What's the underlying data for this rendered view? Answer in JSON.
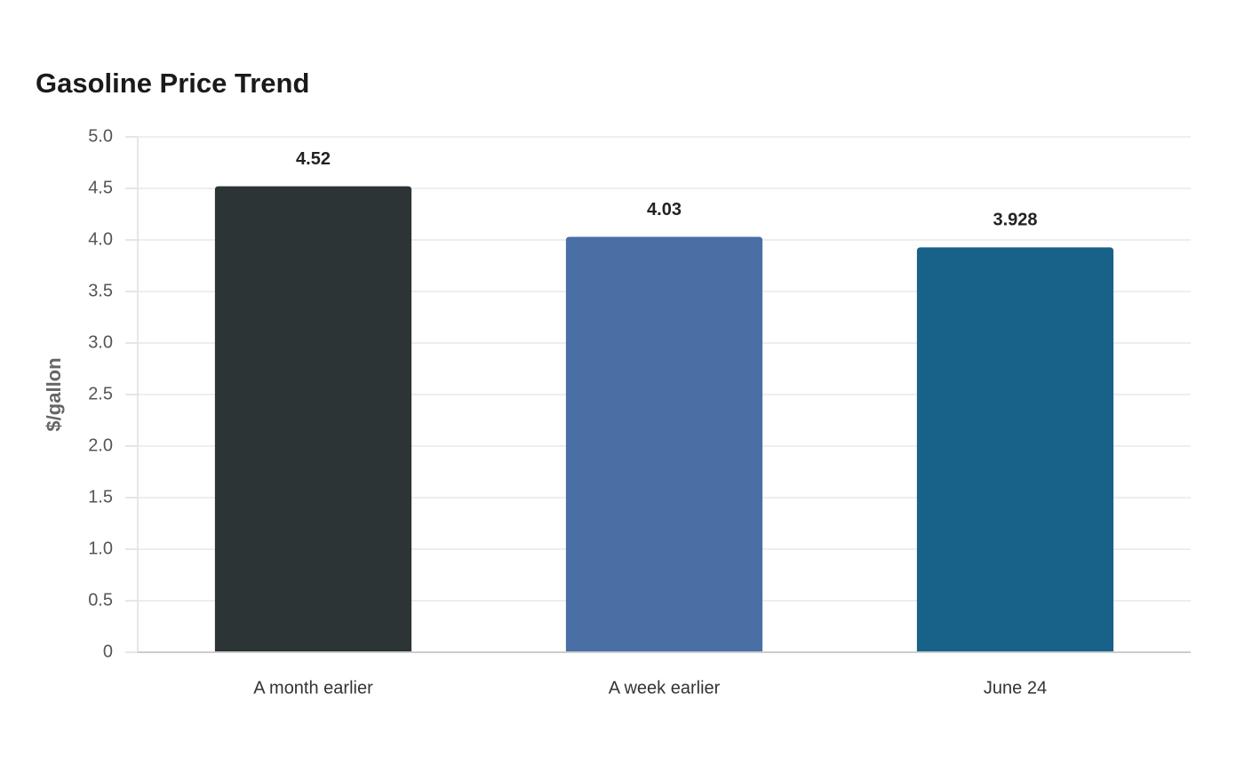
{
  "chart_data": {
    "type": "bar",
    "title": "Gasoline Price Trend",
    "y_label": "$/gallon",
    "categories": [
      "A month earlier",
      "A week earlier",
      "June 24"
    ],
    "values": [
      4.52,
      4.03,
      3.928
    ],
    "colors": [
      "#2d3436",
      "#4a6fa5",
      "#186189"
    ],
    "ylim": [
      0,
      5
    ],
    "yticks": [
      0,
      0.5,
      {
        "value": 1,
        "label": "1.0"
      },
      1.5,
      {
        "value": 2,
        "label": "2.0"
      },
      2.5,
      {
        "value": 3,
        "label": "3.0"
      },
      3.5,
      {
        "value": 4,
        "label": "4.0"
      },
      4.5,
      {
        "value": 5,
        "label": "5.0"
      }
    ],
    "grid": true
  }
}
